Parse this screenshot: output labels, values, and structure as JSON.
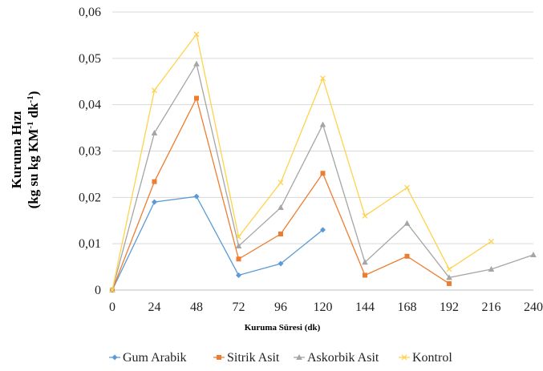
{
  "chart_data": {
    "type": "line",
    "x": [
      0,
      24,
      48,
      72,
      96,
      120,
      144,
      168,
      192,
      216,
      240
    ],
    "xticks": [
      "0",
      "24",
      "48",
      "72",
      "96",
      "120",
      "144",
      "168",
      "192",
      "216",
      "240"
    ],
    "yticks": [
      "0",
      "0,01",
      "0,02",
      "0,03",
      "0,04",
      "0,05",
      "0,06"
    ],
    "xlim": [
      0,
      240
    ],
    "ylim": [
      0,
      0.06
    ],
    "xlabel": "Kuruma Süresi (dk)",
    "ylabel_line1": "Kuruma Hızı",
    "ylabel_line2": "(kg su kg KM",
    "ylabel_sup1": "-1",
    "ylabel_mid": " dk",
    "ylabel_sup2": "-1",
    "ylabel_end": ")",
    "grid": true,
    "legend_position": "bottom",
    "series": [
      {
        "name": "Gum Arabik",
        "color": "#5B9BD5",
        "marker": "diamond",
        "values": [
          0,
          0.019,
          0.0202,
          0.0032,
          0.0057,
          0.013,
          null,
          null,
          null,
          null,
          null
        ]
      },
      {
        "name": "Sitrik Asit",
        "color": "#ED7D31",
        "marker": "square",
        "values": [
          0,
          0.0234,
          0.0414,
          0.0067,
          0.0121,
          0.0252,
          0.0032,
          0.0073,
          0.0014,
          null,
          null
        ]
      },
      {
        "name": "Askorbik Asit",
        "color": "#A5A5A5",
        "marker": "triangle",
        "values": [
          0,
          0.0339,
          0.0488,
          0.0095,
          0.0178,
          0.0357,
          0.006,
          0.0144,
          0.0027,
          0.0045,
          0.0076
        ]
      },
      {
        "name": "Kontrol",
        "color": "#FFD24D",
        "marker": "x",
        "values": [
          0,
          0.0431,
          0.0552,
          0.0115,
          0.0232,
          0.0457,
          0.016,
          0.0221,
          0.0045,
          0.0105,
          null
        ]
      }
    ]
  }
}
